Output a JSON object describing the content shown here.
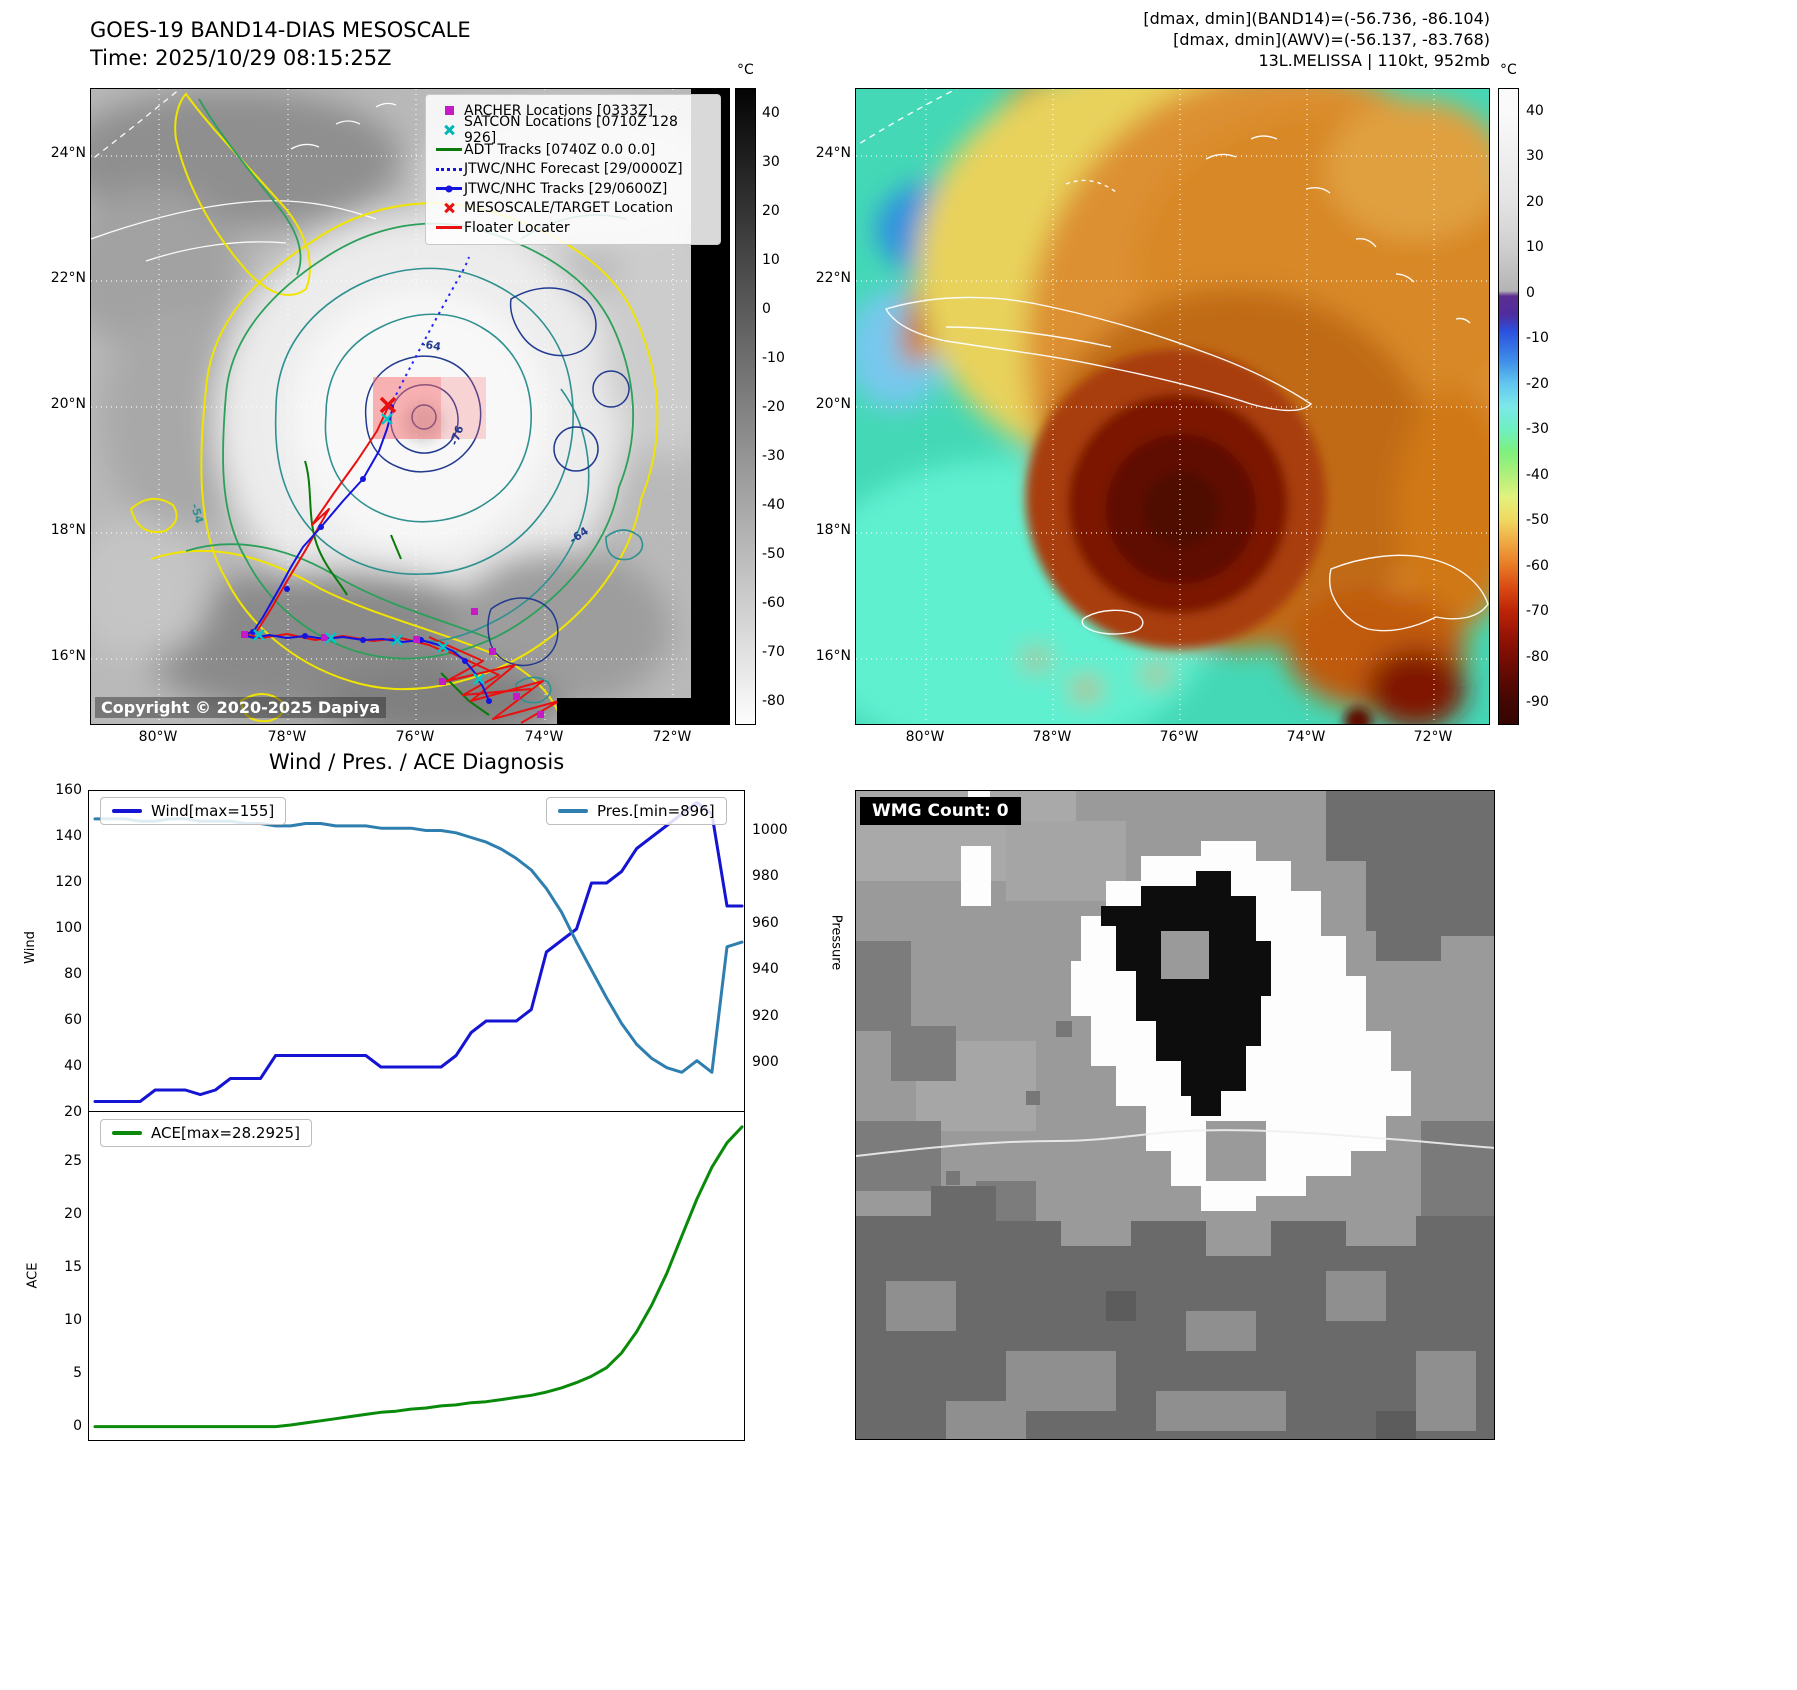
{
  "panel_tl": {
    "title": "GOES-19 BAND14-DIAS MESOSCALE",
    "subtitle": "Time: 2025/10/29 08:15:25Z",
    "copyright": "Copyright © 2020-2025 Dapiya",
    "colorbar": {
      "unit": "°C",
      "ticks": [
        "40",
        "30",
        "20",
        "10",
        "0",
        "-10",
        "-20",
        "-30",
        "-40",
        "-50",
        "-60",
        "-70",
        "-80"
      ],
      "range": [
        45,
        -85
      ]
    },
    "lat_ticks": [
      "24°N",
      "22°N",
      "20°N",
      "18°N",
      "16°N"
    ],
    "lon_ticks": [
      "80°W",
      "78°W",
      "76°W",
      "74°W",
      "72°W"
    ],
    "legend": [
      {
        "label": "ARCHER Locations [0333Z]",
        "color": "#c61ac6",
        "marker": "square"
      },
      {
        "label": "SATCON Locations [0710Z 128 926]",
        "color": "#00b5b5",
        "marker": "x"
      },
      {
        "label": "ADT Tracks [0740Z 0.0 0.0]",
        "color": "#0a7a0a",
        "marker": "line"
      },
      {
        "label": "JTWC/NHC Forecast [29/0000Z]",
        "color": "#1414e0",
        "marker": "dotted"
      },
      {
        "label": "JTWC/NHC Tracks [29/0600Z]",
        "color": "#1414e0",
        "marker": "linedot"
      },
      {
        "label": "MESOSCALE/TARGET Location",
        "color": "#e81010",
        "marker": "x"
      },
      {
        "label": "Floater Locater",
        "color": "#e81010",
        "marker": "line"
      }
    ],
    "contour_labels": [
      "-54",
      "-64",
      "-76",
      "-64"
    ]
  },
  "panel_tr": {
    "header": [
      "[dmax, dmin](BAND14)=(-56.736, -86.104)",
      "[dmax, dmin](AWV)=(-56.137, -83.768)",
      "13L.MELISSA | 110kt, 952mb"
    ],
    "colorbar": {
      "unit": "°C",
      "ticks": [
        "40",
        "30",
        "20",
        "10",
        "0",
        "-10",
        "-20",
        "-30",
        "-40",
        "-50",
        "-60",
        "-70",
        "-80",
        "-90"
      ],
      "range": [
        45,
        -95
      ]
    },
    "lat_ticks": [
      "24°N",
      "22°N",
      "20°N",
      "18°N",
      "16°N"
    ],
    "lon_ticks": [
      "80°W",
      "78°W",
      "76°W",
      "74°W",
      "72°W"
    ]
  },
  "panel_bl": {
    "title": "Wind / Pres. / ACE Diagnosis",
    "wind_axis_label": "Wind",
    "pressure_axis_label": "Pressure",
    "ace_axis_label": "ACE",
    "wind_ticks": {
      "ticks": [
        "160",
        "140",
        "120",
        "100",
        "80",
        "60",
        "40",
        "20"
      ],
      "range": [
        160,
        20
      ]
    },
    "pressure_ticks": {
      "ticks": [
        "1000",
        "980",
        "960",
        "940",
        "920",
        "900"
      ],
      "range": [
        1017,
        878.5
      ]
    },
    "ace_ticks": {
      "ticks": [
        "25",
        "20",
        "15",
        "10",
        "5",
        "0"
      ],
      "range": [
        29.7,
        -1.4
      ]
    }
  },
  "panel_br": {
    "wmg_label": "WMG Count: 0"
  },
  "chart_data": [
    {
      "type": "line",
      "title": "Wind / Pres. / ACE Diagnosis",
      "ylabel_left": "Wind",
      "ylabel_right": "Pressure",
      "ylim_left": [
        20,
        160
      ],
      "ylim_right": [
        878.5,
        1017
      ],
      "yticks_left": [
        160,
        140,
        120,
        100,
        80,
        60,
        40,
        20
      ],
      "yticks_right": [
        1000,
        980,
        960,
        940,
        920,
        900
      ],
      "legend_position": {
        "wind": "upper left",
        "pressure": "upper right"
      },
      "grid": false,
      "series": [
        {
          "name": "Wind[max=155]",
          "color": "#1414d2",
          "axis": "left",
          "values": [
            25,
            25,
            25,
            25,
            30,
            30,
            30,
            28,
            30,
            35,
            35,
            35,
            45,
            45,
            45,
            45,
            45,
            45,
            45,
            40,
            40,
            40,
            40,
            40,
            45,
            55,
            60,
            60,
            60,
            65,
            90,
            95,
            100,
            120,
            120,
            125,
            135,
            140,
            145,
            150,
            155,
            150,
            110,
            110
          ]
        },
        {
          "name": "Pres.[min=896]",
          "color": "#2e7fb0",
          "axis": "right",
          "values": [
            1005,
            1005,
            1005,
            1004,
            1004,
            1005,
            1005,
            1004,
            1004,
            1004,
            1003,
            1003,
            1002,
            1002,
            1003,
            1003,
            1002,
            1002,
            1002,
            1001,
            1001,
            1001,
            1000,
            1000,
            999,
            997,
            995,
            992,
            988,
            983,
            975,
            965,
            952,
            940,
            928,
            917,
            908,
            902,
            898,
            896,
            901,
            896,
            950,
            952
          ]
        }
      ]
    },
    {
      "type": "line",
      "ylabel_left": "ACE",
      "ylim_left": [
        -1.4,
        29.7
      ],
      "yticks_left": [
        25,
        20,
        15,
        10,
        5,
        0
      ],
      "legend_position": {
        "ace": "upper left"
      },
      "grid": false,
      "series": [
        {
          "name": "ACE[max=28.2925]",
          "color": "#0a8a0a",
          "axis": "left",
          "values": [
            0.05,
            0.05,
            0.05,
            0.05,
            0.05,
            0.05,
            0.05,
            0.05,
            0.05,
            0.05,
            0.05,
            0.05,
            0.05,
            0.2,
            0.4,
            0.6,
            0.8,
            1.0,
            1.2,
            1.4,
            1.5,
            1.7,
            1.8,
            2.0,
            2.1,
            2.3,
            2.4,
            2.6,
            2.8,
            3.0,
            3.3,
            3.7,
            4.2,
            4.8,
            5.6,
            7.0,
            9.0,
            11.5,
            14.5,
            18.0,
            21.5,
            24.5,
            26.8,
            28.2925
          ]
        }
      ]
    }
  ]
}
